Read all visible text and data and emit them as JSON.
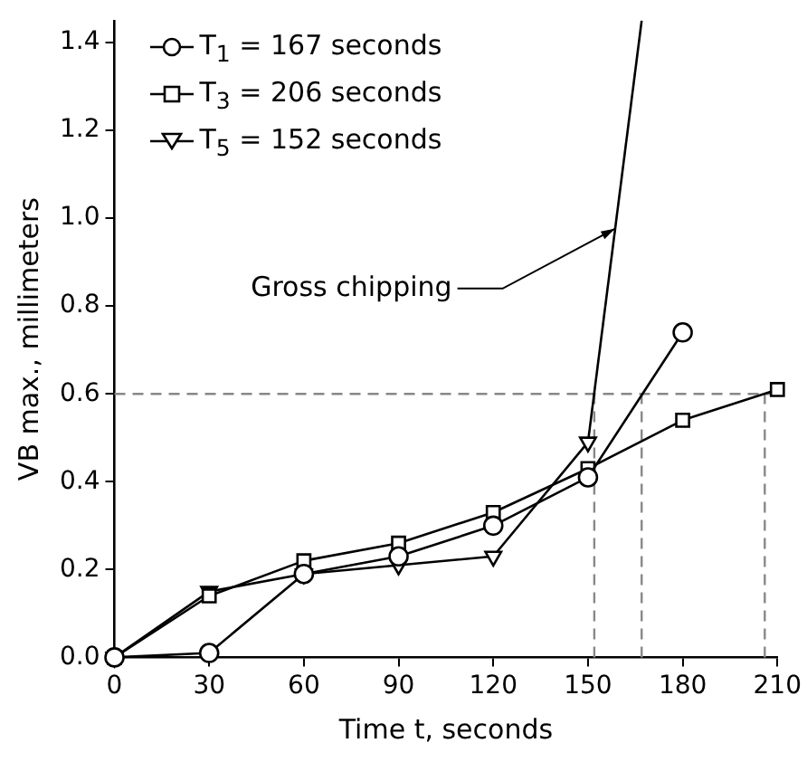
{
  "chart_data": {
    "type": "line",
    "xlabel": "Time t, seconds",
    "ylabel": "VB max., millimeters",
    "xlim": [
      0,
      210
    ],
    "xticks": [
      0,
      30,
      60,
      90,
      120,
      150,
      180,
      210
    ],
    "ylim": [
      0,
      1.45
    ],
    "yticks": [
      {
        "value": 0,
        "label": "0.0"
      },
      {
        "value": 0.2,
        "label": "0.2"
      },
      {
        "value": 0.4,
        "label": "0.4"
      },
      {
        "value": 0.6,
        "label": "0.6"
      },
      {
        "value": 0.8,
        "label": "0.8"
      },
      {
        "value": 1,
        "label": "1.0"
      },
      {
        "value": 1.2,
        "label": "1.2"
      },
      {
        "value": 1.4,
        "label": "1.4"
      }
    ],
    "grid": false,
    "legend": "top left",
    "line_style": "solid",
    "series": [
      {
        "name": "T$_{1}$ = 167 seconds",
        "color": "#000000",
        "marker": "circle",
        "x": [
          0,
          30,
          60,
          90,
          120,
          150,
          180
        ],
        "values": [
          0,
          0.01,
          0.19,
          0.23,
          0.3,
          0.41,
          0.74
        ]
      },
      {
        "name": "T$_{3}$ = 206 seconds",
        "color": "#000000",
        "marker": "square",
        "x": [
          0,
          30,
          60,
          90,
          120,
          150,
          180,
          210
        ],
        "values": [
          0,
          0.14,
          0.22,
          0.26,
          0.33,
          0.43,
          0.54,
          0.61
        ]
      },
      {
        "name": "T$_{5}$ = 152 seconds",
        "color": "#000000",
        "marker": "triangle",
        "x": [
          0,
          30,
          60,
          90,
          120,
          150
        ],
        "values": [
          0,
          0.15,
          0.19,
          0.21,
          0.23,
          0.49
        ]
      },
      {
        "color": "#000000",
        "marker": "none",
        "x": [
          150,
          167
        ],
        "values": [
          0.49,
          1.45
        ]
      }
    ],
    "ref_lines": [
      {
        "axis": "y",
        "value": 0.6,
        "color": "#888888",
        "line_style": "dashed"
      },
      {
        "axis": "x",
        "value": 152,
        "color": "#888888",
        "line_style": "dashed"
      },
      {
        "axis": "x",
        "value": 167,
        "color": "#888888",
        "line_style": "dashed"
      },
      {
        "axis": "x",
        "value": 206,
        "color": "#888888",
        "line_style": "dashed"
      }
    ],
    "annotations": [
      {
        "text": "Gross chipping",
        "x": 158.5,
        "y": 0.976
      }
    ]
  }
}
